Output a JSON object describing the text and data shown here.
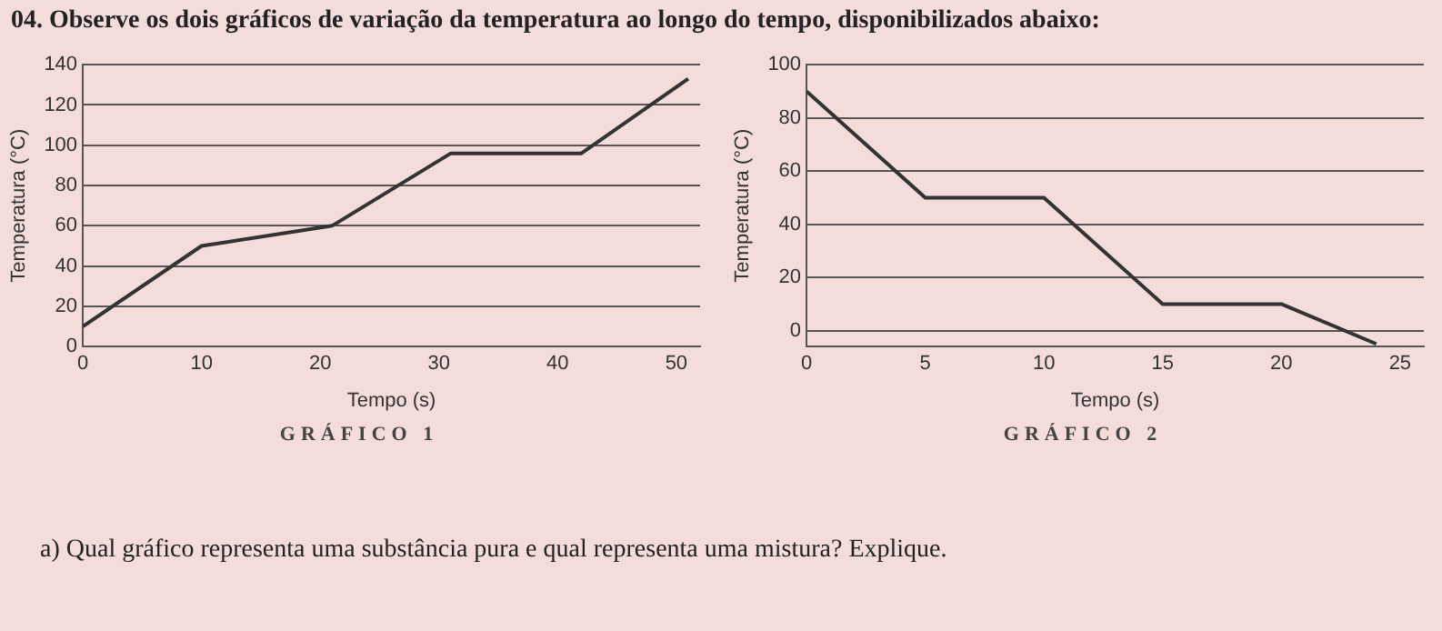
{
  "chart_data": [
    {
      "type": "line",
      "title": "GRÁFICO 1",
      "xlabel": "Tempo (s)",
      "ylabel": "Temperatura (°C)",
      "annotations": [
        "04. Observe os dois gráficos de variação da temperatura ao longo do tempo, disponibilizados abaixo:"
      ],
      "x": [
        0,
        10,
        21,
        31,
        42,
        51
      ],
      "values": [
        10,
        50,
        60,
        96,
        96,
        133
      ],
      "color": "#333333",
      "xlim": [
        0,
        52
      ],
      "xticks": [
        0,
        10,
        20,
        30,
        40,
        50
      ],
      "ylim": [
        0,
        140
      ],
      "yticks": [
        0,
        20,
        40,
        60,
        80,
        100,
        120,
        140
      ],
      "grid": "y"
    },
    {
      "type": "line",
      "title": "GRÁFICO 2",
      "xlabel": "Tempo (s)",
      "ylabel": "Temperatura (°C)",
      "annotations": [
        "a) Qual gráfico representa uma substância pura e qual representa uma mistura? Explique."
      ],
      "x": [
        0,
        5,
        10,
        15,
        20,
        24
      ],
      "values": [
        90,
        50,
        50,
        10,
        10,
        -5
      ],
      "color": "#333333",
      "xlim": [
        0,
        26
      ],
      "xticks": [
        0,
        5,
        10,
        15,
        20,
        25
      ],
      "ylim": [
        -6,
        100
      ],
      "yticks": [
        0,
        20,
        40,
        60,
        80,
        100
      ],
      "grid": "y"
    }
  ]
}
